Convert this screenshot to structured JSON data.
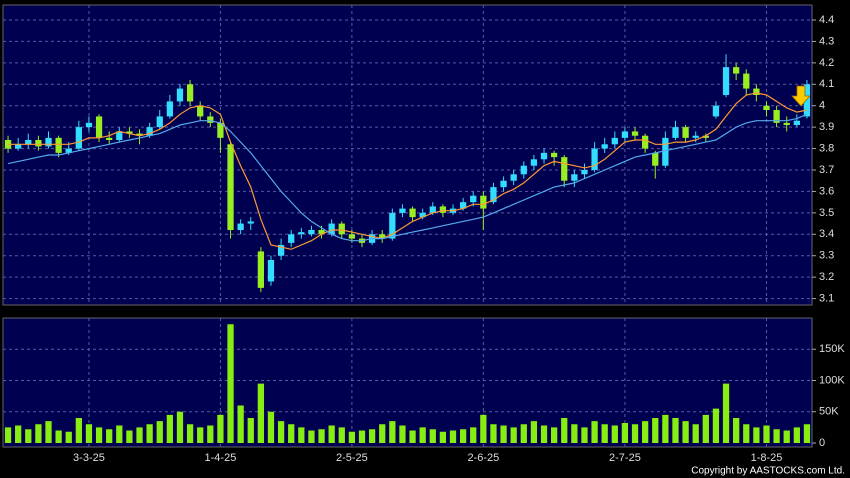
{
  "chart_data": {
    "type": "candlestick",
    "categories": [
      null,
      null,
      null,
      null,
      null,
      null,
      null,
      null,
      "3-3-25",
      null,
      null,
      null,
      null,
      null,
      null,
      null,
      null,
      null,
      null,
      null,
      null,
      "1-4-25",
      null,
      null,
      null,
      null,
      null,
      null,
      null,
      null,
      null,
      null,
      null,
      null,
      "2-5-25",
      null,
      null,
      null,
      null,
      null,
      null,
      null,
      null,
      null,
      null,
      null,
      null,
      "2-6-25",
      null,
      null,
      null,
      null,
      null,
      null,
      null,
      null,
      null,
      null,
      null,
      null,
      null,
      "2-7-25",
      null,
      null,
      null,
      null,
      null,
      null,
      null,
      null,
      null,
      null,
      null,
      null,
      null,
      "1-8-25",
      null,
      null,
      null,
      null
    ],
    "open": [
      3.84,
      3.8,
      3.82,
      3.84,
      3.81,
      3.85,
      3.78,
      3.8,
      3.9,
      3.95,
      3.85,
      3.84,
      3.88,
      3.87,
      3.86,
      3.9,
      3.95,
      4.02,
      4.1,
      4.0,
      3.95,
      3.92,
      3.82,
      3.42,
      3.45,
      3.32,
      3.18,
      3.3,
      3.36,
      3.4,
      3.4,
      3.42,
      3.4,
      3.45,
      3.4,
      3.38,
      3.36,
      3.4,
      3.38,
      3.5,
      3.52,
      3.48,
      3.5,
      3.53,
      3.5,
      3.52,
      3.55,
      3.58,
      3.55,
      3.62,
      3.65,
      3.68,
      3.72,
      3.75,
      3.78,
      3.76,
      3.65,
      3.68,
      3.7,
      3.8,
      3.82,
      3.85,
      3.88,
      3.86,
      3.78,
      3.72,
      3.85,
      3.9,
      3.85,
      3.86,
      3.95,
      4.05,
      4.18,
      4.15,
      4.08,
      4.0,
      3.98,
      3.92,
      3.91,
      3.95
    ],
    "high": [
      3.86,
      3.85,
      3.87,
      3.86,
      3.88,
      3.86,
      3.83,
      3.93,
      3.95,
      3.96,
      3.88,
      3.9,
      3.9,
      3.89,
      3.92,
      3.98,
      4.05,
      4.1,
      4.12,
      4.02,
      3.97,
      3.94,
      3.83,
      3.47,
      3.48,
      3.34,
      3.3,
      3.38,
      3.42,
      3.43,
      3.44,
      3.44,
      3.47,
      3.46,
      3.42,
      3.4,
      3.42,
      3.42,
      3.52,
      3.54,
      3.53,
      3.52,
      3.55,
      3.54,
      3.54,
      3.57,
      3.6,
      3.6,
      3.64,
      3.67,
      3.7,
      3.74,
      3.77,
      3.8,
      3.79,
      3.77,
      3.7,
      3.73,
      3.83,
      3.85,
      3.88,
      3.9,
      3.9,
      3.87,
      3.79,
      3.88,
      3.93,
      3.91,
      3.88,
      3.87,
      4.02,
      4.24,
      4.2,
      4.17,
      4.1,
      4.02,
      4.0,
      3.95,
      3.96,
      4.12
    ],
    "low": [
      3.78,
      3.79,
      3.8,
      3.79,
      3.8,
      3.76,
      3.77,
      3.79,
      3.88,
      3.83,
      3.82,
      3.83,
      3.85,
      3.82,
      3.85,
      3.89,
      3.94,
      4.0,
      4.0,
      3.93,
      3.9,
      3.78,
      3.38,
      3.4,
      3.42,
      3.13,
      3.16,
      3.28,
      3.34,
      3.38,
      3.39,
      3.38,
      3.39,
      3.38,
      3.36,
      3.34,
      3.35,
      3.36,
      3.37,
      3.48,
      3.46,
      3.47,
      3.49,
      3.48,
      3.49,
      3.51,
      3.53,
      3.42,
      3.54,
      3.6,
      3.63,
      3.66,
      3.7,
      3.73,
      3.72,
      3.62,
      3.62,
      3.66,
      3.69,
      3.78,
      3.8,
      3.83,
      3.84,
      3.78,
      3.66,
      3.71,
      3.84,
      3.83,
      3.83,
      3.83,
      3.94,
      4.04,
      4.12,
      4.05,
      4.02,
      3.95,
      3.9,
      3.88,
      3.9,
      3.94
    ],
    "close": [
      3.8,
      3.82,
      3.84,
      3.81,
      3.85,
      3.78,
      3.8,
      3.9,
      3.92,
      3.85,
      3.84,
      3.88,
      3.87,
      3.86,
      3.9,
      3.95,
      4.02,
      4.08,
      4.02,
      3.95,
      3.92,
      3.85,
      3.42,
      3.45,
      3.46,
      3.15,
      3.28,
      3.35,
      3.4,
      3.41,
      3.42,
      3.4,
      3.45,
      3.4,
      3.38,
      3.36,
      3.4,
      3.38,
      3.5,
      3.52,
      3.48,
      3.5,
      3.53,
      3.5,
      3.52,
      3.55,
      3.58,
      3.52,
      3.62,
      3.65,
      3.68,
      3.72,
      3.75,
      3.78,
      3.76,
      3.65,
      3.68,
      3.7,
      3.8,
      3.82,
      3.85,
      3.88,
      3.86,
      3.8,
      3.72,
      3.85,
      3.9,
      3.85,
      3.86,
      3.85,
      4.0,
      4.18,
      4.15,
      4.08,
      4.05,
      3.98,
      3.92,
      3.91,
      3.93,
      4.1
    ],
    "up_color": "#33ddff",
    "down_color": "#99ee22",
    "ma_lines": [
      {
        "color": "#ff9933",
        "values": [
          3.82,
          3.82,
          3.82,
          3.82,
          3.82,
          3.82,
          3.82,
          3.83,
          3.85,
          3.85,
          3.86,
          3.88,
          3.87,
          3.86,
          3.87,
          3.89,
          3.92,
          3.96,
          3.99,
          4.0,
          3.99,
          3.96,
          3.83,
          3.72,
          3.62,
          3.47,
          3.35,
          3.34,
          3.33,
          3.35,
          3.37,
          3.4,
          3.42,
          3.42,
          3.41,
          3.4,
          3.39,
          3.38,
          3.4,
          3.43,
          3.46,
          3.48,
          3.5,
          3.51,
          3.51,
          3.52,
          3.54,
          3.54,
          3.56,
          3.59,
          3.61,
          3.64,
          3.68,
          3.72,
          3.74,
          3.73,
          3.72,
          3.71,
          3.72,
          3.75,
          3.79,
          3.83,
          3.84,
          3.84,
          3.82,
          3.82,
          3.83,
          3.83,
          3.84,
          3.86,
          3.89,
          3.95,
          4.01,
          4.05,
          4.06,
          4.05,
          4.02,
          3.99,
          3.97,
          3.98
        ]
      },
      {
        "color": "#55aaee",
        "values": [
          3.73,
          3.74,
          3.75,
          3.76,
          3.77,
          3.77,
          3.78,
          3.79,
          3.8,
          3.81,
          3.82,
          3.83,
          3.84,
          3.85,
          3.86,
          3.87,
          3.89,
          3.91,
          3.92,
          3.93,
          3.93,
          3.92,
          3.88,
          3.83,
          3.78,
          3.72,
          3.66,
          3.6,
          3.55,
          3.5,
          3.46,
          3.43,
          3.4,
          3.38,
          3.37,
          3.37,
          3.38,
          3.38,
          3.39,
          3.4,
          3.41,
          3.42,
          3.43,
          3.44,
          3.45,
          3.46,
          3.47,
          3.48,
          3.5,
          3.52,
          3.54,
          3.56,
          3.58,
          3.6,
          3.62,
          3.63,
          3.64,
          3.66,
          3.68,
          3.7,
          3.72,
          3.74,
          3.76,
          3.77,
          3.78,
          3.79,
          3.8,
          3.81,
          3.82,
          3.83,
          3.84,
          3.87,
          3.9,
          3.92,
          3.93,
          3.93,
          3.93,
          3.93,
          3.94,
          3.96
        ]
      }
    ],
    "ylim": [
      3.07,
      4.47
    ],
    "yticks": [
      3.1,
      3.2,
      3.3,
      3.4,
      3.5,
      3.6,
      3.7,
      3.8,
      3.9,
      4,
      4.1,
      4.2,
      4.3,
      4.4
    ],
    "grid": true,
    "volume": {
      "color": "#88ee11",
      "values": [
        25000,
        28000,
        22000,
        30000,
        35000,
        20000,
        18000,
        40000,
        30000,
        25000,
        22000,
        28000,
        20000,
        25000,
        30000,
        35000,
        45000,
        50000,
        30000,
        25000,
        28000,
        45000,
        190000,
        60000,
        40000,
        95000,
        50000,
        35000,
        30000,
        25000,
        20000,
        22000,
        28000,
        25000,
        18000,
        20000,
        22000,
        30000,
        35000,
        28000,
        20000,
        25000,
        22000,
        18000,
        20000,
        22000,
        25000,
        45000,
        30000,
        28000,
        25000,
        30000,
        35000,
        28000,
        25000,
        40000,
        30000,
        25000,
        35000,
        30000,
        28000,
        32000,
        30000,
        35000,
        40000,
        45000,
        40000,
        35000,
        30000,
        45000,
        55000,
        95000,
        40000,
        30000,
        25000,
        28000,
        22000,
        20000,
        25000,
        30000
      ],
      "ylim": [
        0,
        200000
      ],
      "yticks": [
        0,
        {
          "value": 50000,
          "label": "50K"
        },
        {
          "value": 100000,
          "label": "100K"
        },
        {
          "value": 150000,
          "label": "150K"
        }
      ]
    },
    "copyright": "Copyright by AASTOCKS.com Ltd."
  }
}
